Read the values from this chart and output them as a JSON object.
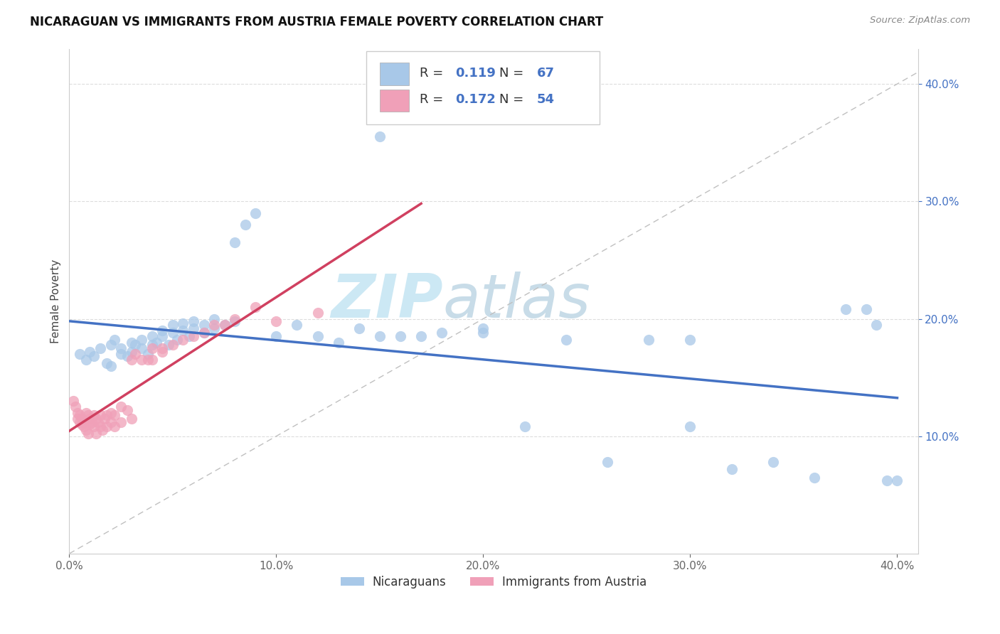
{
  "title": "NICARAGUAN VS IMMIGRANTS FROM AUSTRIA FEMALE POVERTY CORRELATION CHART",
  "source": "Source: ZipAtlas.com",
  "ylabel": "Female Poverty",
  "xlim": [
    0.0,
    0.41
  ],
  "ylim": [
    0.0,
    0.43
  ],
  "R1": 0.119,
  "N1": 67,
  "R2": 0.172,
  "N2": 54,
  "nicaraguan_color": "#a8c8e8",
  "austria_color": "#f0a0b8",
  "trend_blue": "#4472c4",
  "trend_pink": "#d04060",
  "tick_color": "#4472c4",
  "watermark_color": "#cce8f4",
  "legend_label_1": "Nicaraguans",
  "legend_label_2": "Immigrants from Austria",
  "bg_color": "#ffffff",
  "nicaraguan_x": [
    0.005,
    0.008,
    0.01,
    0.012,
    0.015,
    0.018,
    0.02,
    0.02,
    0.022,
    0.025,
    0.025,
    0.028,
    0.03,
    0.03,
    0.032,
    0.035,
    0.035,
    0.038,
    0.04,
    0.04,
    0.042,
    0.045,
    0.045,
    0.048,
    0.05,
    0.05,
    0.052,
    0.055,
    0.055,
    0.058,
    0.06,
    0.06,
    0.065,
    0.065,
    0.07,
    0.07,
    0.075,
    0.08,
    0.08,
    0.085,
    0.09,
    0.1,
    0.11,
    0.12,
    0.13,
    0.14,
    0.15,
    0.16,
    0.17,
    0.18,
    0.2,
    0.22,
    0.24,
    0.26,
    0.28,
    0.3,
    0.32,
    0.34,
    0.36,
    0.375,
    0.385,
    0.39,
    0.395,
    0.4,
    0.15,
    0.2,
    0.3
  ],
  "nicaraguan_y": [
    0.17,
    0.165,
    0.172,
    0.168,
    0.175,
    0.162,
    0.178,
    0.16,
    0.182,
    0.17,
    0.175,
    0.168,
    0.18,
    0.172,
    0.178,
    0.175,
    0.182,
    0.17,
    0.185,
    0.178,
    0.18,
    0.185,
    0.19,
    0.178,
    0.188,
    0.195,
    0.182,
    0.19,
    0.196,
    0.185,
    0.192,
    0.198,
    0.188,
    0.195,
    0.192,
    0.2,
    0.195,
    0.265,
    0.198,
    0.28,
    0.29,
    0.185,
    0.195,
    0.185,
    0.18,
    0.192,
    0.185,
    0.185,
    0.185,
    0.188,
    0.188,
    0.108,
    0.182,
    0.078,
    0.182,
    0.182,
    0.072,
    0.078,
    0.065,
    0.208,
    0.208,
    0.195,
    0.062,
    0.062,
    0.355,
    0.192,
    0.108
  ],
  "austria_x": [
    0.002,
    0.003,
    0.004,
    0.004,
    0.005,
    0.005,
    0.006,
    0.006,
    0.007,
    0.007,
    0.008,
    0.008,
    0.009,
    0.009,
    0.01,
    0.01,
    0.011,
    0.012,
    0.012,
    0.013,
    0.013,
    0.014,
    0.015,
    0.015,
    0.016,
    0.017,
    0.018,
    0.018,
    0.02,
    0.02,
    0.022,
    0.022,
    0.025,
    0.025,
    0.028,
    0.03,
    0.03,
    0.032,
    0.035,
    0.038,
    0.04,
    0.04,
    0.045,
    0.045,
    0.05,
    0.055,
    0.06,
    0.065,
    0.07,
    0.075,
    0.08,
    0.09,
    0.1,
    0.12
  ],
  "austria_y": [
    0.13,
    0.125,
    0.12,
    0.115,
    0.118,
    0.112,
    0.115,
    0.11,
    0.112,
    0.108,
    0.12,
    0.105,
    0.118,
    0.102,
    0.115,
    0.11,
    0.112,
    0.118,
    0.108,
    0.115,
    0.102,
    0.112,
    0.108,
    0.118,
    0.105,
    0.115,
    0.118,
    0.108,
    0.12,
    0.112,
    0.118,
    0.108,
    0.125,
    0.112,
    0.122,
    0.165,
    0.115,
    0.17,
    0.165,
    0.165,
    0.175,
    0.165,
    0.172,
    0.175,
    0.178,
    0.182,
    0.185,
    0.188,
    0.195,
    0.195,
    0.2,
    0.21,
    0.198,
    0.205
  ]
}
